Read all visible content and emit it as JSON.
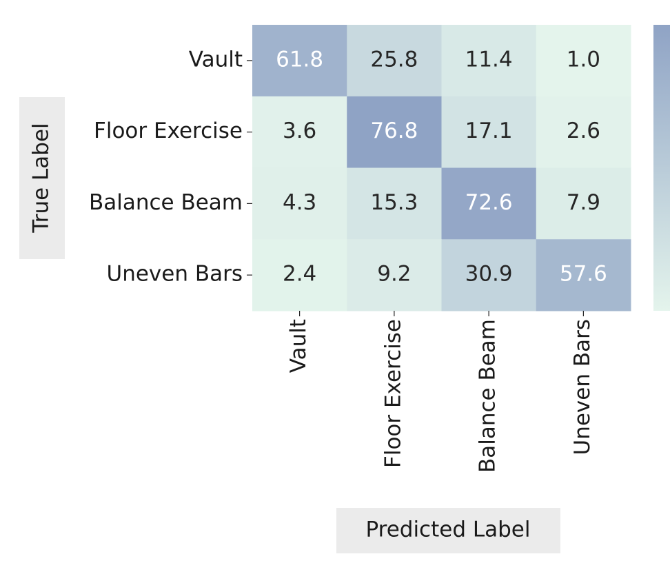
{
  "chart_data": {
    "type": "heatmap",
    "x_label": "Predicted Label",
    "y_label": "True Label",
    "x_categories": [
      "Vault",
      "Floor Exercise",
      "Balance Beam",
      "Uneven Bars"
    ],
    "y_categories": [
      "Vault",
      "Floor Exercise",
      "Balance Beam",
      "Uneven Bars"
    ],
    "values": [
      [
        61.8,
        25.8,
        11.4,
        1.0
      ],
      [
        3.6,
        76.8,
        17.1,
        2.6
      ],
      [
        4.3,
        15.3,
        72.6,
        7.9
      ],
      [
        2.4,
        9.2,
        30.9,
        57.6
      ]
    ],
    "value_labels": [
      [
        "61.8",
        "25.8",
        "11.4",
        "1.0"
      ],
      [
        "3.6",
        "76.8",
        "17.1",
        "2.6"
      ],
      [
        "4.3",
        "15.3",
        "72.6",
        "7.9"
      ],
      [
        "2.4",
        "9.2",
        "30.9",
        "57.6"
      ]
    ],
    "colors": [
      "#e4f4ec",
      "#8fa3c5"
    ],
    "colorbar": true
  }
}
